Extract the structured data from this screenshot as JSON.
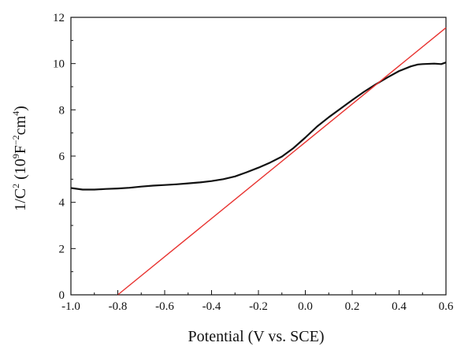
{
  "chart_data": {
    "type": "line",
    "title": "",
    "xlabel": "Potential (V vs. SCE)",
    "ylabel": {
      "base": "1/C",
      "sup": "2",
      "unit_prefix": " (10",
      "unit_sup1": "9",
      "unit_mid": "F",
      "unit_sup2": "−2",
      "unit_mid2": "cm",
      "unit_sup3": "4",
      "unit_suffix": ")"
    },
    "xlim": [
      -1.0,
      0.6
    ],
    "ylim": [
      0,
      12
    ],
    "xticks": [
      -1.0,
      -0.8,
      -0.6,
      -0.4,
      -0.2,
      0.0,
      0.2,
      0.4,
      0.6
    ],
    "xtick_labels": [
      "-1.0",
      "-0.8",
      "-0.6",
      "-0.4",
      "-0.2",
      "0.0",
      "0.2",
      "0.4",
      "0.6"
    ],
    "yticks": [
      0,
      2,
      4,
      6,
      8,
      10,
      12
    ],
    "ytick_labels": [
      "0",
      "2",
      "4",
      "6",
      "8",
      "10",
      "12"
    ],
    "grid": false,
    "legend": "none",
    "series": [
      {
        "kind": "measured",
        "color": "#111111",
        "x": [
          -1.0,
          -0.95,
          -0.9,
          -0.85,
          -0.8,
          -0.75,
          -0.7,
          -0.65,
          -0.6,
          -0.55,
          -0.5,
          -0.45,
          -0.4,
          -0.35,
          -0.3,
          -0.25,
          -0.2,
          -0.15,
          -0.1,
          -0.05,
          0.0,
          0.05,
          0.1,
          0.15,
          0.2,
          0.25,
          0.3,
          0.35,
          0.4,
          0.45,
          0.48,
          0.5,
          0.55,
          0.58,
          0.6
        ],
        "y": [
          4.62,
          4.55,
          4.55,
          4.58,
          4.6,
          4.63,
          4.68,
          4.72,
          4.75,
          4.78,
          4.82,
          4.86,
          4.92,
          5.0,
          5.12,
          5.3,
          5.5,
          5.72,
          5.98,
          6.35,
          6.8,
          7.28,
          7.68,
          8.05,
          8.42,
          8.78,
          9.1,
          9.4,
          9.68,
          9.88,
          9.96,
          9.98,
          10.0,
          9.98,
          10.05
        ]
      },
      {
        "kind": "linear-fit",
        "color": "#e8322f",
        "x": [
          -0.8,
          0.6
        ],
        "y": [
          0,
          11.55
        ]
      }
    ]
  }
}
